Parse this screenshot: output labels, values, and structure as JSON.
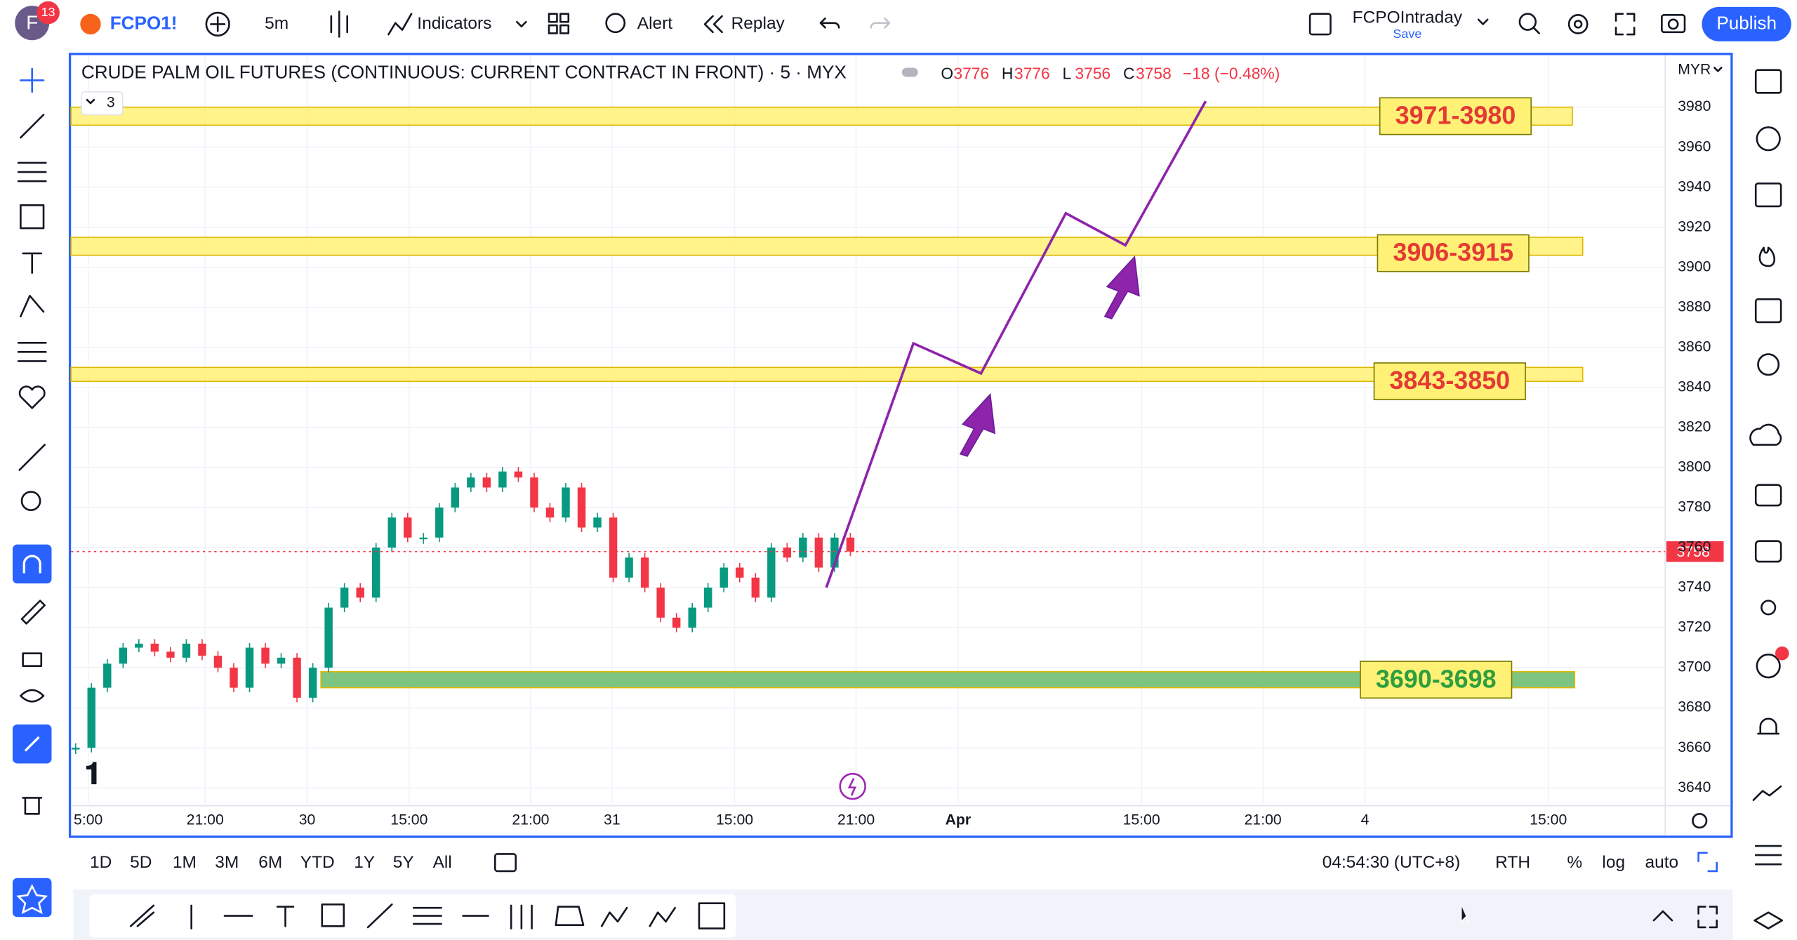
{
  "header": {
    "avatar": "F",
    "notifications": 13,
    "symbol": "FCPO1!",
    "interval": "5m",
    "indicators": "Indicators",
    "alert": "Alert",
    "replay": "Replay",
    "layout_name": "FCPOIntraday",
    "layout_status": "Save",
    "publish": "Publish"
  },
  "chart": {
    "title": "CRUDE PALM OIL FUTURES (CONTINUOUS: CURRENT CONTRACT IN FRONT) · 5 · MYX",
    "legend_count": 3,
    "ohlc": [
      {
        "label": "O",
        "value": 3776
      },
      {
        "label": "H",
        "value": 3776
      },
      {
        "label": "L",
        "value": 3756
      },
      {
        "label": "C",
        "value": 3758
      }
    ],
    "change": "−18 (−0.48%)",
    "currency": "MYR",
    "ylim": [
      3631,
      4006
    ],
    "yticks": [
      3640,
      3660,
      3680,
      3700,
      3720,
      3740,
      3760,
      3780,
      3800,
      3820,
      3840,
      3860,
      3880,
      3900,
      3920,
      3940,
      3960,
      3980
    ],
    "time_labels": [
      "5:00",
      "21:00",
      "30",
      "15:00",
      "21:00",
      "31",
      "15:00",
      "21:00",
      "Apr",
      "15:00",
      "21:00",
      "4",
      "15:00"
    ],
    "closes": [
      3660,
      3690,
      3702,
      3710,
      3712,
      3708,
      3705,
      3712,
      3706,
      3700,
      3690,
      3710,
      3702,
      3705,
      3685,
      3700,
      3730,
      3740,
      3735,
      3760,
      3775,
      3765,
      3765,
      3780,
      3790,
      3795,
      3790,
      3798,
      3795,
      3780,
      3775,
      3790,
      3770,
      3775,
      3745,
      3755,
      3740,
      3725,
      3720,
      3730,
      3740,
      3750,
      3745,
      3735,
      3760,
      3755,
      3765,
      3750,
      3765,
      3758
    ],
    "last_price": 3758,
    "zones": [
      {
        "label": "3971-3980",
        "low": 3971,
        "high": 3980,
        "band_color": "#fff176",
        "text_color": "#e53935"
      },
      {
        "label": "3906-3915",
        "low": 3906,
        "high": 3915,
        "band_color": "#fff176",
        "text_color": "#e53935"
      },
      {
        "label": "3843-3850",
        "low": 3843,
        "high": 3850,
        "band_color": "#fff176",
        "text_color": "#e53935"
      },
      {
        "label": "3690-3698",
        "low": 3690,
        "high": 3698,
        "band_color": "#66bb6a",
        "text_color": "#2e9e3e"
      }
    ],
    "projection": [
      3740,
      3862,
      3847,
      3927,
      3911,
      3983
    ]
  },
  "footer": {
    "ranges": [
      "1D",
      "5D",
      "1M",
      "3M",
      "6M",
      "YTD",
      "1Y",
      "5Y",
      "All"
    ],
    "clock": "04:54:30 (UTC+8)",
    "session": "RTH",
    "percent": "%",
    "log": "log",
    "auto": "auto"
  }
}
